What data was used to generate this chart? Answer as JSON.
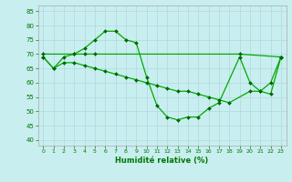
{
  "xlabel": "Humidité relative (%)",
  "bg_color": "#c8eef0",
  "grid_color": "#b0d8dc",
  "line_color": "#00aa00",
  "marker_color": "#006600",
  "xlim": [
    -0.5,
    23.5
  ],
  "ylim": [
    38,
    87
  ],
  "yticks": [
    40,
    45,
    50,
    55,
    60,
    65,
    70,
    75,
    80,
    85
  ],
  "xticks": [
    0,
    1,
    2,
    3,
    4,
    5,
    6,
    7,
    8,
    9,
    10,
    11,
    12,
    13,
    14,
    15,
    16,
    17,
    18,
    19,
    20,
    21,
    22,
    23
  ],
  "curve1_x": [
    0,
    1,
    2,
    3,
    4,
    5,
    6,
    7,
    8,
    9,
    10,
    11,
    12,
    13,
    14,
    15,
    16,
    17,
    19,
    20,
    21,
    22,
    23
  ],
  "curve1_y": [
    69,
    65,
    69,
    70,
    72,
    75,
    78,
    78,
    75,
    74,
    62,
    52,
    48,
    47,
    48,
    48,
    51,
    53,
    69,
    60,
    57,
    60,
    69
  ],
  "curve2_x": [
    0,
    3,
    4,
    5,
    19,
    23
  ],
  "curve2_y": [
    70,
    70,
    70,
    70,
    70,
    69
  ],
  "curve3_x": [
    0,
    1,
    2,
    3,
    4,
    5,
    6,
    7,
    8,
    9,
    10,
    11,
    12,
    13,
    14,
    15,
    16,
    17,
    18,
    20,
    21,
    22,
    23
  ],
  "curve3_y": [
    69,
    65,
    67,
    67,
    66,
    65,
    64,
    63,
    62,
    61,
    60,
    59,
    58,
    57,
    57,
    56,
    55,
    54,
    53,
    57,
    57,
    56,
    69
  ]
}
